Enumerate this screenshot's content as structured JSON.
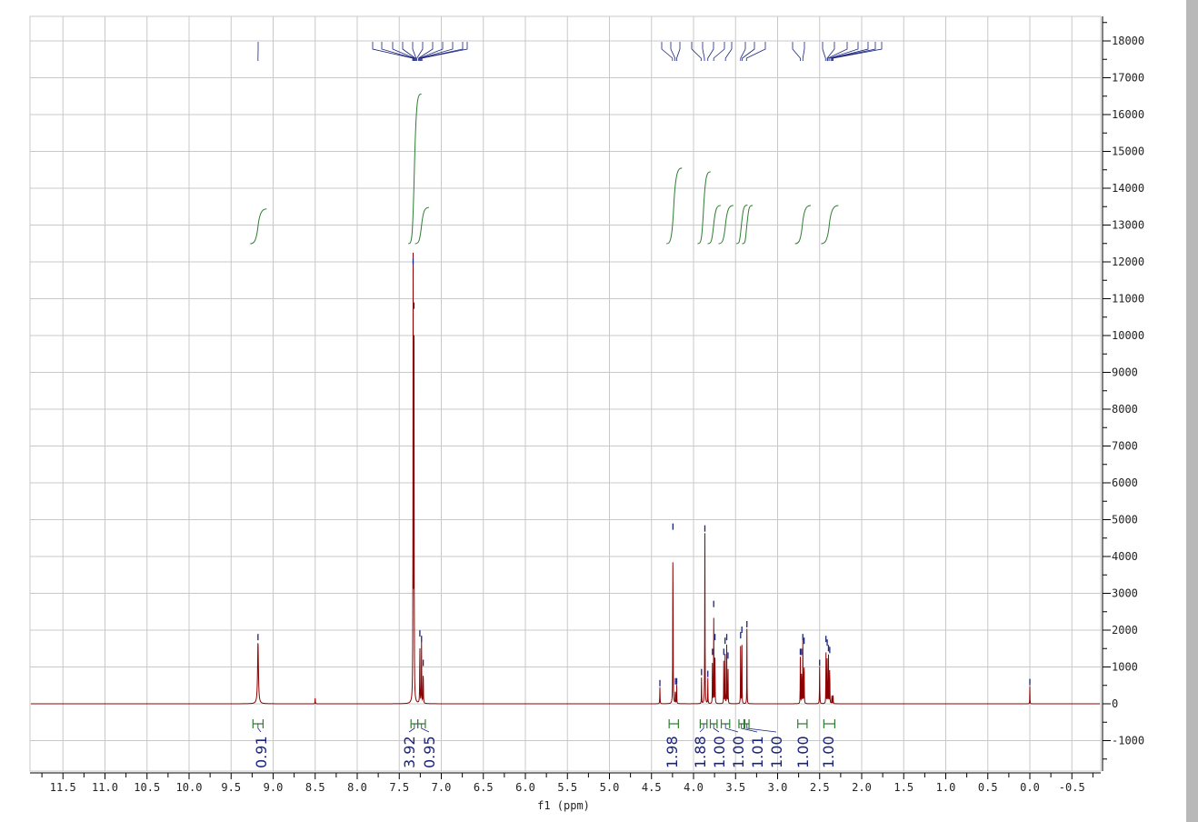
{
  "chart_data": {
    "type": "line",
    "title": "",
    "xlabel": "f1 (ppm)",
    "ylabel": "",
    "xlim": [
      11.9,
      -0.85
    ],
    "ylim": [
      -1850,
      18700
    ],
    "x_reversed": true,
    "grid": true,
    "x_ticks": [
      "11.5",
      "11.0",
      "10.5",
      "10.0",
      "9.5",
      "9.0",
      "8.5",
      "8.0",
      "7.5",
      "7.0",
      "6.5",
      "6.0",
      "5.5",
      "5.0",
      "4.5",
      "4.0",
      "3.5",
      "3.0",
      "2.5",
      "2.0",
      "1.5",
      "1.0",
      "0.5",
      "0.0",
      "-0.5"
    ],
    "y_ticks": [
      "18000",
      "17000",
      "16000",
      "15000",
      "14000",
      "13000",
      "12000",
      "11000",
      "10000",
      "9000",
      "8000",
      "7000",
      "6000",
      "5000",
      "4000",
      "3000",
      "2000",
      "1000",
      "0",
      "-1000"
    ],
    "colors": {
      "spectrum": "#8b0000",
      "integral": "#2e7d32",
      "integral_label": "#1a237e",
      "peak_marker": "#1a237e",
      "grid": "#c8c8c8"
    },
    "peaks": [
      {
        "ppm": 9.18,
        "intensity": 1700,
        "width": 0.012
      },
      {
        "ppm": 8.5,
        "intensity": 150,
        "width": 0.004
      },
      {
        "ppm": 7.335,
        "intensity": 11900,
        "width": 0.004
      },
      {
        "ppm": 7.325,
        "intensity": 10700,
        "width": 0.004
      },
      {
        "ppm": 7.255,
        "intensity": 1800,
        "width": 0.004
      },
      {
        "ppm": 7.235,
        "intensity": 1650,
        "width": 0.004
      },
      {
        "ppm": 7.215,
        "intensity": 1000,
        "width": 0.004
      },
      {
        "ppm": 4.4,
        "intensity": 450,
        "width": 0.004
      },
      {
        "ppm": 4.245,
        "intensity": 4700,
        "width": 0.004
      },
      {
        "ppm": 4.215,
        "intensity": 500,
        "width": 0.003
      },
      {
        "ppm": 4.2,
        "intensity": 500,
        "width": 0.003
      },
      {
        "ppm": 3.905,
        "intensity": 750,
        "width": 0.003
      },
      {
        "ppm": 3.865,
        "intensity": 4650,
        "width": 0.004
      },
      {
        "ppm": 3.83,
        "intensity": 700,
        "width": 0.003
      },
      {
        "ppm": 3.775,
        "intensity": 1300,
        "width": 0.003
      },
      {
        "ppm": 3.76,
        "intensity": 2600,
        "width": 0.003
      },
      {
        "ppm": 3.745,
        "intensity": 1700,
        "width": 0.003
      },
      {
        "ppm": 3.64,
        "intensity": 1300,
        "width": 0.003
      },
      {
        "ppm": 3.625,
        "intensity": 1600,
        "width": 0.003
      },
      {
        "ppm": 3.605,
        "intensity": 1700,
        "width": 0.003
      },
      {
        "ppm": 3.59,
        "intensity": 1200,
        "width": 0.003
      },
      {
        "ppm": 3.44,
        "intensity": 1750,
        "width": 0.003
      },
      {
        "ppm": 3.425,
        "intensity": 1900,
        "width": 0.003
      },
      {
        "ppm": 3.365,
        "intensity": 2050,
        "width": 0.003
      },
      {
        "ppm": 2.73,
        "intensity": 1300,
        "width": 0.003
      },
      {
        "ppm": 2.715,
        "intensity": 1300,
        "width": 0.003
      },
      {
        "ppm": 2.7,
        "intensity": 1700,
        "width": 0.003
      },
      {
        "ppm": 2.685,
        "intensity": 1600,
        "width": 0.003
      },
      {
        "ppm": 2.5,
        "intensity": 1000,
        "width": 0.004
      },
      {
        "ppm": 2.425,
        "intensity": 1650,
        "width": 0.003
      },
      {
        "ppm": 2.41,
        "intensity": 1550,
        "width": 0.003
      },
      {
        "ppm": 2.395,
        "intensity": 1400,
        "width": 0.003
      },
      {
        "ppm": 2.38,
        "intensity": 1350,
        "width": 0.003
      },
      {
        "ppm": 2.355,
        "intensity": 300,
        "width": 0.003
      },
      {
        "ppm": 2.34,
        "intensity": 250,
        "width": 0.003
      },
      {
        "ppm": 0.0,
        "intensity": 480,
        "width": 0.003
      }
    ],
    "integrals": [
      {
        "from": 9.24,
        "to": 9.12,
        "value": "0.91"
      },
      {
        "from": 7.36,
        "to": 7.28,
        "value": "3.92"
      },
      {
        "from": 7.28,
        "to": 7.19,
        "value": "0.95"
      },
      {
        "from": 4.29,
        "to": 4.18,
        "value": "1.98"
      },
      {
        "from": 3.92,
        "to": 3.84,
        "value": "1.88"
      },
      {
        "from": 3.8,
        "to": 3.72,
        "value": "1.00"
      },
      {
        "from": 3.67,
        "to": 3.57,
        "value": "1.00"
      },
      {
        "from": 3.46,
        "to": 3.4,
        "value": "1.01"
      },
      {
        "from": 3.39,
        "to": 3.34,
        "value": "1.00"
      },
      {
        "from": 2.76,
        "to": 2.65,
        "value": "1.00"
      },
      {
        "from": 2.45,
        "to": 2.32,
        "value": "1.00"
      }
    ]
  }
}
